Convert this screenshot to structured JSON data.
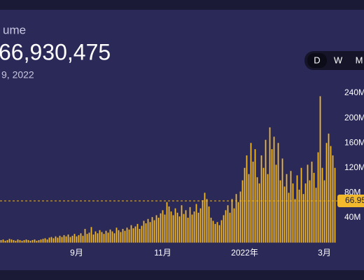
{
  "header": {
    "title": "ume",
    "value": "66,930,475",
    "date": "9, 2022"
  },
  "buttons": [
    "D",
    "W",
    "M"
  ],
  "chart_data": {
    "type": "bar",
    "color": "#f2b92c",
    "ylim": [
      0,
      240
    ],
    "yticks": [
      {
        "value": 40,
        "label": "40M"
      },
      {
        "value": 80,
        "label": "80M"
      },
      {
        "value": 120,
        "label": "120M"
      },
      {
        "value": 160,
        "label": "160M"
      },
      {
        "value": 200,
        "label": "200M"
      },
      {
        "value": 240,
        "label": "240M"
      }
    ],
    "ref_line": {
      "value": 66.95,
      "label": "66.95"
    },
    "categories": [
      null,
      null,
      null,
      null,
      null,
      null,
      null,
      null,
      null,
      null,
      null,
      null,
      null,
      null,
      null,
      null,
      null,
      null,
      null,
      null,
      null,
      null,
      null,
      null,
      null,
      null,
      null,
      null,
      null,
      null,
      null,
      null,
      null,
      null,
      null,
      null,
      "9月",
      null,
      null,
      null,
      null,
      null,
      null,
      null,
      null,
      null,
      null,
      null,
      null,
      null,
      null,
      null,
      null,
      null,
      null,
      null,
      null,
      null,
      null,
      null,
      null,
      null,
      null,
      null,
      null,
      null,
      null,
      null,
      null,
      null,
      null,
      null,
      null,
      null,
      null,
      null,
      null,
      "11月",
      null,
      null,
      null,
      null,
      null,
      null,
      null,
      null,
      null,
      null,
      null,
      null,
      null,
      null,
      null,
      null,
      null,
      null,
      null,
      null,
      null,
      null,
      null,
      null,
      null,
      null,
      null,
      null,
      null,
      null,
      null,
      null,
      null,
      null,
      null,
      null,
      null,
      null,
      "2022年",
      null,
      null,
      null,
      null,
      null,
      null,
      null,
      null,
      null,
      null,
      null,
      null,
      null,
      null,
      null,
      null,
      null,
      null,
      null,
      null,
      null,
      null,
      null,
      null,
      null,
      null,
      null,
      null,
      null,
      null,
      null,
      null,
      null,
      null,
      null,
      null,
      null,
      "3月",
      null,
      null,
      null,
      null,
      null
    ],
    "values": [
      4,
      5,
      3,
      4,
      6,
      5,
      4,
      3,
      5,
      4,
      3,
      4,
      5,
      4,
      3,
      4,
      5,
      3,
      4,
      5,
      6,
      7,
      5,
      8,
      9,
      7,
      10,
      8,
      11,
      9,
      12,
      10,
      13,
      9,
      11,
      14,
      10,
      12,
      15,
      11,
      22,
      14,
      16,
      25,
      13,
      18,
      15,
      20,
      17,
      14,
      19,
      16,
      21,
      18,
      15,
      24,
      20,
      17,
      22,
      19,
      24,
      21,
      28,
      23,
      26,
      30,
      22,
      27,
      35,
      31,
      38,
      33,
      41,
      36,
      44,
      40,
      47,
      52,
      45,
      65,
      58,
      50,
      44,
      55,
      48,
      42,
      60,
      46,
      52,
      40,
      57,
      45,
      50,
      62,
      48,
      55,
      68,
      80,
      70,
      58,
      40,
      35,
      30,
      33,
      28,
      36,
      44,
      52,
      60,
      48,
      70,
      55,
      78,
      65,
      82,
      100,
      120,
      140,
      110,
      160,
      130,
      150,
      105,
      95,
      140,
      120,
      165,
      110,
      185,
      150,
      170,
      125,
      160,
      100,
      135,
      90,
      110,
      80,
      115,
      95,
      70,
      108,
      85,
      120,
      78,
      95,
      125,
      100,
      130,
      112,
      88,
      145,
      235,
      120,
      100,
      160,
      175,
      155,
      140,
      120
    ]
  }
}
